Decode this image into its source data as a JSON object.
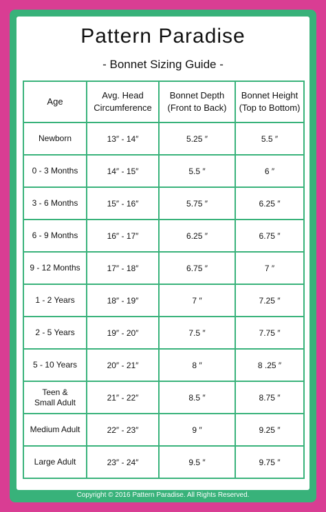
{
  "title": "Pattern Paradise",
  "subtitle": "- Bonnet Sizing Guide -",
  "headers": {
    "age": "Age",
    "head_line1": "Avg. Head",
    "head_line2": "Circumference",
    "depth_line1": "Bonnet Depth",
    "depth_line2": "(Front to Back)",
    "height_line1": "Bonnet Height",
    "height_line2": "(Top to Bottom)"
  },
  "rows": [
    {
      "age": "Newborn",
      "head": "13″ - 14″",
      "depth": "5.25 ″",
      "height": "5.5 ″"
    },
    {
      "age": "0 - 3 Months",
      "head": "14″ - 15″",
      "depth": "5.5 ″",
      "height": "6 ″"
    },
    {
      "age": "3 - 6 Months",
      "head": "15″ - 16″",
      "depth": "5.75 ″",
      "height": "6.25 ″"
    },
    {
      "age": "6 - 9 Months",
      "head": "16″ - 17″",
      "depth": "6.25 ″",
      "height": "6.75 ″"
    },
    {
      "age": "9 - 12 Months",
      "head": "17″ - 18″",
      "depth": "6.75 ″",
      "height": "7 ″"
    },
    {
      "age": "1 - 2 Years",
      "head": "18″ - 19″",
      "depth": "7 ″",
      "height": "7.25 ″"
    },
    {
      "age": "2 - 5 Years",
      "head": "19″ - 20″",
      "depth": "7.5 ″",
      "height": "7.75 ″"
    },
    {
      "age": "5 - 10 Years",
      "head": "20″ - 21″",
      "depth": "8 ″",
      "height": "8 .25 ″"
    },
    {
      "age": "Teen &",
      "age2": "Small Adult",
      "head": "21″ - 22″",
      "depth": "8.5 ″",
      "height": "8.75 ″"
    },
    {
      "age": "Medium Adult",
      "head": "22″ - 23″",
      "depth": "9 ″",
      "height": "9.25 ″"
    },
    {
      "age": "Large Adult",
      "head": "23″ - 24″",
      "depth": "9.5 ″",
      "height": "9.75 ″"
    }
  ],
  "footer": "Copyright © 2016 Pattern Paradise. All Rights Reserved.",
  "colors": {
    "border_pink": "#d93d93",
    "border_green": "#38b27a",
    "card": "#ffffff"
  }
}
